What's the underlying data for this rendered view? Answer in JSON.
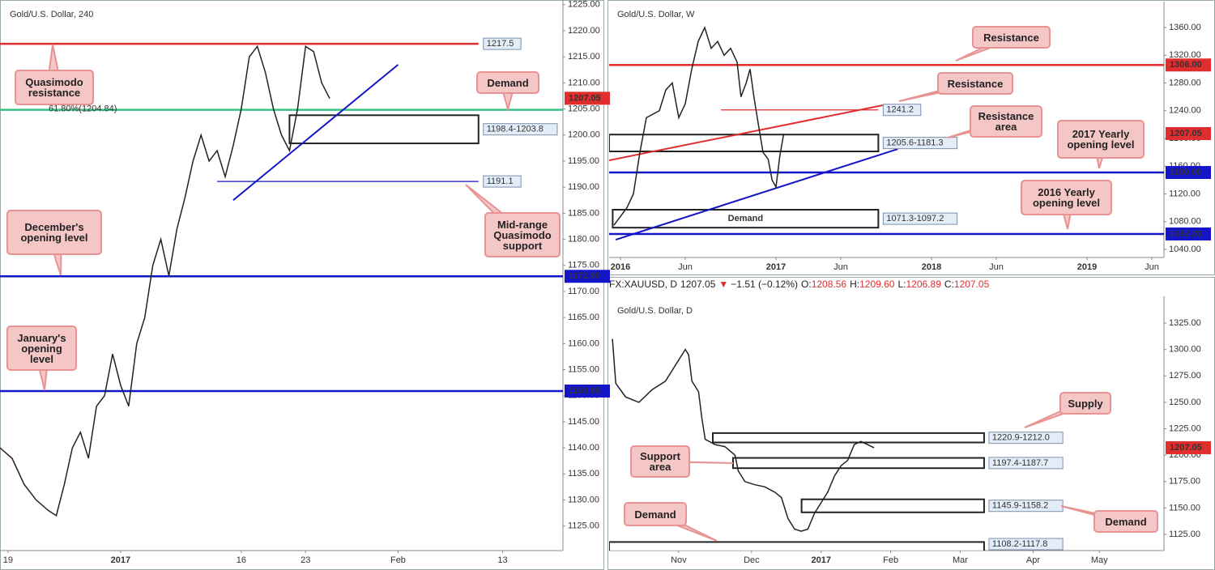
{
  "chart_data": [
    {
      "type": "line",
      "title": "Gold/U.S. Dollar, 240",
      "color": "#222222",
      "x": [
        0,
        3,
        6,
        9,
        12,
        14,
        16,
        18,
        20,
        22,
        24,
        26,
        28,
        30,
        32,
        34,
        36,
        38,
        40,
        42,
        44,
        46,
        48,
        50,
        52,
        54,
        56,
        58,
        60,
        62,
        64,
        66,
        68,
        70,
        72,
        74,
        76,
        78,
        80,
        82
      ],
      "values": [
        1140,
        1138,
        1133,
        1130,
        1128,
        1127,
        1133,
        1140,
        1143,
        1138,
        1148,
        1150,
        1158,
        1152,
        1148,
        1160,
        1165,
        1175,
        1180,
        1173,
        1182,
        1188,
        1195,
        1200,
        1195,
        1197,
        1192,
        1198,
        1205,
        1215,
        1217,
        1212,
        1205,
        1200,
        1197,
        1205,
        1217,
        1216,
        1210,
        1207
      ],
      "xlim": [
        0,
        140
      ],
      "xticks": [
        {
          "value": 2,
          "label": "19"
        },
        {
          "value": 30,
          "label": "2017"
        },
        {
          "value": 60,
          "label": "16"
        },
        {
          "value": 76,
          "label": "23"
        },
        {
          "value": 99,
          "label": "Feb"
        },
        {
          "value": 125,
          "label": "13"
        }
      ],
      "ylim": [
        1120.3,
        1225.9
      ],
      "yticks": [
        {
          "value": 1125,
          "label": "1125.00"
        },
        {
          "value": 1130,
          "label": "1130.00"
        },
        {
          "value": 1135,
          "label": "1135.00"
        },
        {
          "value": 1140,
          "label": "1140.00"
        },
        {
          "value": 1145,
          "label": "1145.00"
        },
        {
          "value": 1150,
          "label": "1150.00"
        },
        {
          "value": 1155,
          "label": "1155.00"
        },
        {
          "value": 1160,
          "label": "1160.00"
        },
        {
          "value": 1165,
          "label": "1165.00"
        },
        {
          "value": 1170,
          "label": "1170.00"
        },
        {
          "value": 1175,
          "label": "1175.00"
        },
        {
          "value": 1180,
          "label": "1180.00"
        },
        {
          "value": 1185,
          "label": "1185.00"
        },
        {
          "value": 1190,
          "label": "1190.00"
        },
        {
          "value": 1195,
          "label": "1195.00"
        },
        {
          "value": 1200,
          "label": "1200.00"
        },
        {
          "value": 1205,
          "label": "1205.00"
        },
        {
          "value": 1210,
          "label": "1210.00"
        },
        {
          "value": 1215,
          "label": "1215.00"
        },
        {
          "value": 1220,
          "label": "1220.00"
        },
        {
          "value": 1225,
          "label": "1225.00"
        }
      ],
      "levels": [
        {
          "value": 1217.5,
          "color": "#e02d2d",
          "width": "thick",
          "x": [
            0,
            119
          ],
          "tag": "box"
        },
        {
          "value": 1204.84,
          "label": "61.80%(1204.84)",
          "color": "#35c383",
          "width": "thick",
          "tag": "text"
        },
        {
          "value": 1191.1,
          "color": "#1414c8",
          "width": "thin",
          "x": [
            54,
            119
          ],
          "tag": "box"
        },
        {
          "value": 1172.9,
          "label": "1172.90",
          "color": "#1414c8",
          "width": "thick",
          "tag": "axis"
        },
        {
          "value": 1150.9,
          "label": "1150.90",
          "color": "#1414c8",
          "width": "thick",
          "tag": "axis"
        }
      ],
      "zones": [
        {
          "low": 1198.4,
          "high": 1203.8,
          "label": "1198.4-1203.8",
          "x": [
            72,
            119
          ]
        }
      ],
      "trendlines": [
        {
          "x": [
            58,
            99
          ],
          "y": [
            1187.5,
            1213.5
          ],
          "color": "#1414c8"
        }
      ],
      "price": {
        "value": 1207.05,
        "label": "1207.05",
        "color": "#e02d2d"
      },
      "callouts": [
        "Quasimodo resistance",
        "Demand",
        "December's opening level",
        "January's opening level",
        "Mid-range Quasimodo support"
      ]
    },
    {
      "type": "line",
      "title": "Gold/U.S. Dollar, W",
      "color": "#222222",
      "x": [
        -0.5,
        0.5,
        1,
        1.5,
        2,
        3,
        3.5,
        4,
        4.5,
        5,
        5.5,
        6,
        6.5,
        7,
        7.5,
        8,
        8.5,
        9,
        9.3,
        9.7,
        10,
        10.3,
        10.6,
        11,
        11.4,
        11.7,
        12,
        12.3,
        12.6
      ],
      "values": [
        1075,
        1100,
        1120,
        1180,
        1230,
        1240,
        1270,
        1280,
        1230,
        1250,
        1300,
        1340,
        1360,
        1330,
        1340,
        1320,
        1330,
        1310,
        1260,
        1280,
        1300,
        1260,
        1225,
        1180,
        1170,
        1140,
        1130,
        1175,
        1207
      ],
      "xlim": [
        -0.875,
        41.94
      ],
      "xticks": [
        {
          "value": 0,
          "label": "2016"
        },
        {
          "value": 5,
          "label": "Jun"
        },
        {
          "value": 12,
          "label": "2017"
        },
        {
          "value": 17,
          "label": "Jun"
        },
        {
          "value": 24,
          "label": "2018"
        },
        {
          "value": 29,
          "label": "Jun"
        },
        {
          "value": 36,
          "label": "2019"
        },
        {
          "value": 41,
          "label": "Jun"
        }
      ],
      "ylim": [
        1028.3,
        1397.4
      ],
      "yticks": [
        {
          "value": 1040,
          "label": "1040.00"
        },
        {
          "value": 1080,
          "label": "1080.00"
        },
        {
          "value": 1120,
          "label": "1120.00"
        },
        {
          "value": 1160,
          "label": "1160.00"
        },
        {
          "value": 1200,
          "label": "1200.00"
        },
        {
          "value": 1240,
          "label": "1240.00"
        },
        {
          "value": 1280,
          "label": "1280.00"
        },
        {
          "value": 1320,
          "label": "1320.00"
        },
        {
          "value": 1360,
          "label": "1360.00"
        }
      ],
      "levels": [
        {
          "value": 1306,
          "label": "1306.00",
          "color": "#e02d2d",
          "width": "thick",
          "tag": "axis"
        },
        {
          "value": 1241.2,
          "color": "#e02d2d",
          "width": "thin",
          "x": [
            7.75,
            19.9
          ],
          "tag": "box"
        },
        {
          "value": 1150.9,
          "label": "1150.90",
          "color": "#1414c8",
          "width": "thick",
          "tag": "axis"
        },
        {
          "value": 1062.2,
          "label": "1062.20",
          "color": "#1414c8",
          "width": "thick",
          "tag": "axis"
        }
      ],
      "zones": [
        {
          "low": 1181.3,
          "high": 1205.6,
          "label": "1205.6-1181.3",
          "x": [
            -0.875,
            19.9
          ]
        },
        {
          "low": 1071.3,
          "high": 1097.2,
          "label": "1071.3-1097.2",
          "x": [
            -0.6,
            19.9
          ],
          "name": "Demand"
        }
      ],
      "trendlines": [
        {
          "x": [
            -0.875,
            20.25
          ],
          "y": [
            1168.4,
            1247.9
          ],
          "color": "#e02d2d"
        },
        {
          "x": [
            -0.375,
            21.4
          ],
          "y": [
            1053.9,
            1184.8
          ],
          "color": "#1414c8"
        }
      ],
      "price": {
        "value": 1207.05,
        "label": "1207.05",
        "color": "#e02d2d"
      },
      "callouts": [
        "Resistance",
        "Resistance",
        "Resistance area",
        "2017 Yearly opening level",
        "2016 Yearly opening level"
      ]
    },
    {
      "type": "line",
      "title": "Gold/U.S. Dollar, D",
      "color": "#222222",
      "header": {
        "symbol": "FX:XAUUSD, D",
        "last": "1207.05",
        "arrow": "▼",
        "change": "−1.51 (−0.12%)",
        "ohlc": [
          {
            "key": "O:",
            "value": "1208.56"
          },
          {
            "key": "H:",
            "value": "1209.60"
          },
          {
            "key": "L:",
            "value": "1206.89"
          },
          {
            "key": "C:",
            "value": "1207.05"
          }
        ]
      },
      "x": [
        2,
        3,
        6,
        10,
        14,
        18,
        20,
        22,
        24,
        25,
        26,
        28,
        29,
        30,
        33,
        36,
        39,
        40,
        42,
        45,
        48,
        51,
        53,
        55,
        57,
        59,
        61,
        63,
        65,
        67,
        69,
        71,
        73,
        75,
        77,
        79,
        81
      ],
      "values": [
        1310,
        1268,
        1255,
        1250,
        1262,
        1270,
        1280,
        1290,
        1300,
        1295,
        1270,
        1260,
        1235,
        1215,
        1210,
        1208,
        1200,
        1185,
        1175,
        1172,
        1170,
        1165,
        1160,
        1140,
        1130,
        1128,
        1130,
        1145,
        1155,
        1165,
        1180,
        1190,
        1195,
        1210,
        1213,
        1210,
        1207
      ],
      "xlim": [
        1,
        168.5
      ],
      "xticks": [
        {
          "value": 22,
          "label": "Nov"
        },
        {
          "value": 44,
          "label": "Dec"
        },
        {
          "value": 65,
          "label": "2017"
        },
        {
          "value": 86,
          "label": "Feb"
        },
        {
          "value": 107,
          "label": "Mar"
        },
        {
          "value": 129,
          "label": "Apr"
        },
        {
          "value": 149,
          "label": "May"
        }
      ],
      "ylim": [
        1109.7,
        1350.3
      ],
      "yticks": [
        {
          "value": 1125,
          "label": "1125.00"
        },
        {
          "value": 1150,
          "label": "1150.00"
        },
        {
          "value": 1175,
          "label": "1175.00"
        },
        {
          "value": 1200,
          "label": "1200.00"
        },
        {
          "value": 1225,
          "label": "1225.00"
        },
        {
          "value": 1250,
          "label": "1250.00"
        },
        {
          "value": 1275,
          "label": "1275.00"
        },
        {
          "value": 1300,
          "label": "1300.00"
        },
        {
          "value": 1325,
          "label": "1325.00"
        }
      ],
      "levels": [],
      "zones": [
        {
          "low": 1212.0,
          "high": 1220.9,
          "label": "1220.9-1212.0",
          "x": [
            32.3,
            114.2
          ]
        },
        {
          "low": 1187.7,
          "high": 1197.4,
          "label": "1197.4-1187.7",
          "x": [
            38.4,
            114.2
          ]
        },
        {
          "low": 1145.9,
          "high": 1158.2,
          "label": "1145.9-1158.2",
          "x": [
            59.1,
            114.2
          ]
        },
        {
          "low": 1108.2,
          "high": 1117.8,
          "label": "1108.2-1117.8",
          "x": [
            1,
            114.2
          ]
        }
      ],
      "trendlines": [],
      "price": {
        "value": 1207.05,
        "label": "1207.05",
        "color": "#e02d2d"
      },
      "callouts": [
        "Supply",
        "Support area",
        "Demand",
        "Demand"
      ]
    }
  ]
}
